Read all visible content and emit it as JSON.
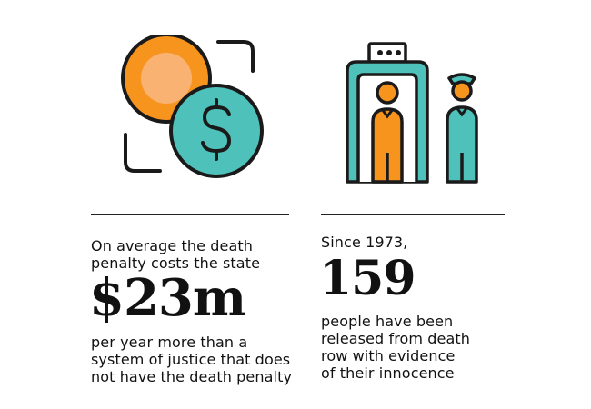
{
  "colors": {
    "orange": "#F7941E",
    "orange_light": "#F9B272",
    "teal": "#4FC1BB",
    "outline": "#1A1A1A"
  },
  "icons": {
    "left": "coins-dollar-icon",
    "right": "metal-detector-guard-icon"
  },
  "left_panel": {
    "intro": "On average the death\npenalty costs the state",
    "figure": "$23m",
    "outro": "per year more than a\nsystem of justice that does\nnot have the death penalty"
  },
  "right_panel": {
    "intro": "Since 1973,",
    "figure": "159",
    "outro": "people have been\nreleased from death\nrow with evidence\nof their innocence"
  }
}
